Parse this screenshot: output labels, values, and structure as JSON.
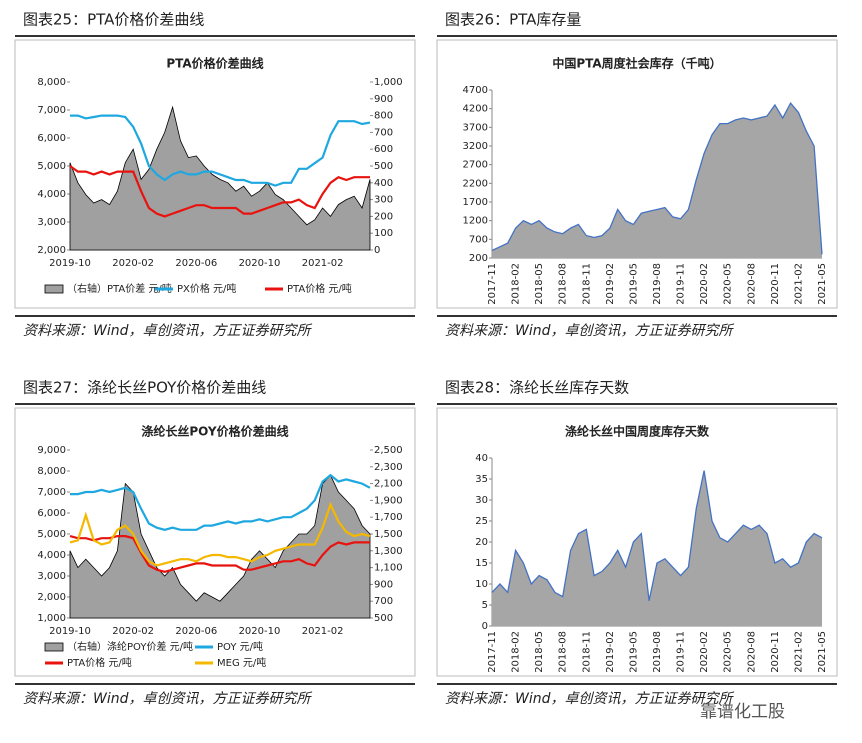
{
  "watermark": "靠谱化工股",
  "chart_data": [
    {
      "type": "line",
      "caption": "图表25：PTA价格价差曲线",
      "title": "PTA价格价差曲线",
      "source": "资料来源：Wind，卓创资讯，方正证券研究所",
      "grid": false,
      "categories": [
        "2019-10",
        null,
        null,
        null,
        null,
        null,
        null,
        null,
        "2020-02",
        null,
        null,
        null,
        null,
        null,
        null,
        null,
        "2020-06",
        null,
        null,
        null,
        null,
        null,
        null,
        null,
        "2020-10",
        null,
        null,
        null,
        null,
        null,
        null,
        null,
        "2021-02",
        null,
        null,
        null,
        null,
        null,
        null
      ],
      "ylim": [
        2000,
        8000
      ],
      "yticks": [
        {
          "value": 2000,
          "label": "2,000"
        },
        {
          "value": 3000,
          "label": "3,000"
        },
        {
          "value": 4000,
          "label": "4,000"
        },
        {
          "value": 5000,
          "label": "5,000"
        },
        {
          "value": 6000,
          "label": "6,000"
        },
        {
          "value": 7000,
          "label": "7,000"
        },
        {
          "value": 8000,
          "label": "8,000"
        }
      ],
      "y2lim": [
        0,
        1000
      ],
      "y2ticks": [
        0,
        100,
        200,
        300,
        400,
        500,
        600,
        700,
        800,
        900,
        {
          "value": 1000,
          "label": "1,000"
        }
      ],
      "series": [
        {
          "name": "（右轴）PTA价差 元/吨",
          "type": "area",
          "axis": "y2",
          "color": "#a0a0a0",
          "values": [
            520,
            400,
            330,
            280,
            300,
            270,
            350,
            520,
            600,
            420,
            480,
            600,
            700,
            850,
            650,
            550,
            560,
            500,
            450,
            420,
            400,
            350,
            380,
            320,
            350,
            400,
            330,
            300,
            250,
            200,
            150,
            180,
            250,
            200,
            270,
            300,
            320,
            250,
            420
          ]
        },
        {
          "name": "PX价格 元/吨",
          "type": "line",
          "color": "#1fa8e0",
          "values": [
            6800,
            6800,
            6700,
            6750,
            6800,
            6800,
            6800,
            6750,
            6400,
            5800,
            5000,
            4700,
            4500,
            4700,
            4800,
            4700,
            4700,
            4800,
            4800,
            4700,
            4600,
            4500,
            4500,
            4400,
            4400,
            4400,
            4300,
            4400,
            4400,
            4900,
            4900,
            5100,
            5300,
            6100,
            6600,
            6600,
            6600,
            6500,
            6550
          ]
        },
        {
          "name": "PTA价格 元/吨",
          "type": "line",
          "color": "#e8130f",
          "values": [
            5000,
            4800,
            4800,
            4700,
            4800,
            4700,
            4800,
            4800,
            4800,
            4100,
            3500,
            3300,
            3200,
            3300,
            3400,
            3500,
            3600,
            3600,
            3500,
            3500,
            3500,
            3500,
            3300,
            3300,
            3400,
            3500,
            3600,
            3700,
            3700,
            3800,
            3600,
            3500,
            4000,
            4400,
            4600,
            4500,
            4600,
            4600,
            4600
          ]
        }
      ]
    },
    {
      "type": "area",
      "caption": "图表26：PTA库存量",
      "title": "中国PTA周度社会库存（千吨）",
      "source": "资料来源：Wind，卓创资讯，方正证券研究所",
      "grid": false,
      "color": "#a6a6a6",
      "line_color": "#4472c4",
      "categories": [
        "2017-11",
        null,
        null,
        "2018-02",
        null,
        null,
        "2018-05",
        null,
        null,
        "2018-08",
        null,
        null,
        "2018-11",
        null,
        null,
        "2019-02",
        null,
        null,
        "2019-05",
        null,
        null,
        "2019-08",
        null,
        null,
        "2019-11",
        null,
        null,
        "2020-02",
        null,
        null,
        "2020-05",
        null,
        null,
        "2020-08",
        null,
        null,
        "2020-11",
        null,
        null,
        "2021-02",
        null,
        null,
        "2021-05"
      ],
      "ylim": [
        200,
        4700
      ],
      "yticks": [
        200,
        700,
        1200,
        1700,
        2200,
        2700,
        3200,
        3700,
        4200,
        4700
      ],
      "values": [
        400,
        500,
        600,
        1000,
        1200,
        1100,
        1200,
        1000,
        900,
        850,
        1000,
        1100,
        800,
        750,
        800,
        1000,
        1500,
        1200,
        1100,
        1400,
        1450,
        1500,
        1550,
        1300,
        1250,
        1500,
        2300,
        3000,
        3500,
        3800,
        3800,
        3900,
        3950,
        3900,
        3950,
        4000,
        4300,
        3950,
        4350,
        4100,
        3600,
        3200,
        300
      ]
    },
    {
      "type": "line",
      "caption": "图表27：涤纶长丝POY价格价差曲线",
      "title": "涤纶长丝POY价格价差曲线",
      "source": "资料来源：Wind，卓创资讯，方正证券研究所",
      "grid": false,
      "categories": [
        "2019-10",
        null,
        null,
        null,
        null,
        null,
        null,
        null,
        "2020-02",
        null,
        null,
        null,
        null,
        null,
        null,
        null,
        "2020-06",
        null,
        null,
        null,
        null,
        null,
        null,
        null,
        "2020-10",
        null,
        null,
        null,
        null,
        null,
        null,
        null,
        "2021-02",
        null,
        null,
        null,
        null,
        null,
        null
      ],
      "ylim": [
        1000,
        9000
      ],
      "yticks": [
        {
          "value": 1000,
          "label": "1,000"
        },
        {
          "value": 2000,
          "label": "2,000"
        },
        {
          "value": 3000,
          "label": "3,000"
        },
        {
          "value": 4000,
          "label": "4,000"
        },
        {
          "value": 5000,
          "label": "5,000"
        },
        {
          "value": 6000,
          "label": "6,000"
        },
        {
          "value": 7000,
          "label": "7,000"
        },
        {
          "value": 8000,
          "label": "8,000"
        },
        {
          "value": 9000,
          "label": "9,000"
        }
      ],
      "y2lim": [
        500,
        2500
      ],
      "y2ticks": [
        500,
        700,
        900,
        {
          "value": 1100,
          "label": "1,100"
        },
        {
          "value": 1300,
          "label": "1,300"
        },
        {
          "value": 1500,
          "label": "1,500"
        },
        {
          "value": 1700,
          "label": "1,700"
        },
        {
          "value": 1900,
          "label": "1,900"
        },
        {
          "value": 2100,
          "label": "2,100"
        },
        {
          "value": 2300,
          "label": "2,300"
        },
        {
          "value": 2500,
          "label": "2,500"
        }
      ],
      "series": [
        {
          "name": "（右轴）涤纶POY价差 元/吨",
          "type": "area",
          "axis": "y2",
          "color": "#a0a0a0",
          "values": [
            1300,
            1100,
            1200,
            1100,
            1000,
            1100,
            1300,
            2100,
            2000,
            1500,
            1300,
            1100,
            1000,
            1100,
            900,
            800,
            700,
            800,
            750,
            700,
            800,
            900,
            1000,
            1200,
            1300,
            1200,
            1100,
            1300,
            1400,
            1500,
            1500,
            1600,
            2100,
            2200,
            2000,
            1900,
            1800,
            1600,
            1500
          ]
        },
        {
          "name": "POY 元/吨",
          "type": "line",
          "color": "#1fa8e0",
          "values": [
            6900,
            6900,
            7000,
            7000,
            7100,
            7000,
            7100,
            7200,
            7000,
            6200,
            5500,
            5300,
            5200,
            5300,
            5200,
            5200,
            5200,
            5400,
            5400,
            5500,
            5600,
            5500,
            5600,
            5600,
            5700,
            5600,
            5700,
            5800,
            5800,
            6000,
            6200,
            6600,
            7500,
            7800,
            7500,
            7600,
            7500,
            7400,
            7200
          ]
        },
        {
          "name": "PTA价格 元/吨",
          "type": "line",
          "color": "#e8130f",
          "values": [
            4900,
            4800,
            4800,
            4700,
            4800,
            4800,
            4900,
            4900,
            4800,
            4100,
            3500,
            3300,
            3200,
            3300,
            3400,
            3500,
            3600,
            3600,
            3500,
            3500,
            3500,
            3500,
            3300,
            3300,
            3400,
            3500,
            3600,
            3700,
            3700,
            3800,
            3600,
            3500,
            4000,
            4400,
            4600,
            4500,
            4600,
            4600,
            4600
          ]
        },
        {
          "name": "MEG 元/吨",
          "type": "line",
          "color": "#f5b800",
          "values": [
            4600,
            4700,
            5900,
            4700,
            4500,
            4600,
            5200,
            5400,
            5000,
            4200,
            3700,
            3500,
            3600,
            3700,
            3800,
            3800,
            3700,
            3900,
            4000,
            4000,
            3900,
            3900,
            3800,
            3700,
            3900,
            4000,
            4200,
            4300,
            4400,
            4500,
            4500,
            4500,
            5300,
            6400,
            5600,
            5100,
            4900,
            5000,
            4900
          ]
        }
      ]
    },
    {
      "type": "area",
      "caption": "图表28：涤纶长丝库存天数",
      "title": "涤纶长丝中国周度库存天数",
      "source": "资料来源：Wind，卓创资讯，方正证券研究所",
      "grid": false,
      "color": "#a6a6a6",
      "line_color": "#4472c4",
      "categories": [
        "2017-11",
        null,
        null,
        "2018-02",
        null,
        null,
        "2018-05",
        null,
        null,
        "2018-08",
        null,
        null,
        "2018-11",
        null,
        null,
        "2019-02",
        null,
        null,
        "2019-05",
        null,
        null,
        "2019-08",
        null,
        null,
        "2019-11",
        null,
        null,
        "2020-02",
        null,
        null,
        "2020-05",
        null,
        null,
        "2020-08",
        null,
        null,
        "2020-11",
        null,
        null,
        "2021-02",
        null,
        null,
        "2021-05"
      ],
      "ylim": [
        0,
        40
      ],
      "yticks": [
        0,
        5,
        10,
        15,
        20,
        25,
        30,
        35,
        40
      ],
      "values": [
        8,
        10,
        8,
        18,
        15,
        10,
        12,
        11,
        8,
        7,
        18,
        22,
        23,
        12,
        13,
        15,
        18,
        14,
        20,
        22,
        6,
        15,
        16,
        14,
        12,
        14,
        28,
        37,
        25,
        21,
        20,
        22,
        24,
        23,
        24,
        22,
        15,
        16,
        14,
        15,
        20,
        22,
        21
      ]
    }
  ]
}
